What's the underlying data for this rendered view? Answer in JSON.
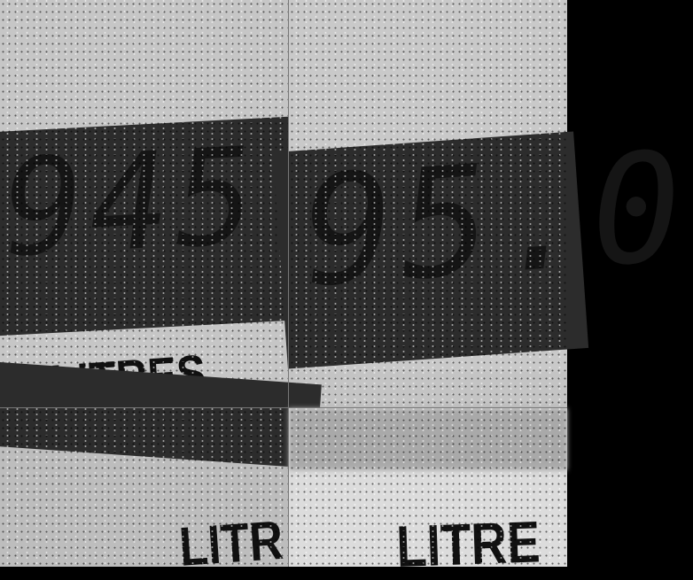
{
  "panels": [
    {
      "reading": "945",
      "unit_label": "LITRES"
    },
    {
      "reading": "95.0",
      "unit_label": ""
    },
    {
      "reading": "",
      "unit_label": "LITR"
    },
    {
      "reading": "",
      "unit_label": "LITRE"
    }
  ]
}
